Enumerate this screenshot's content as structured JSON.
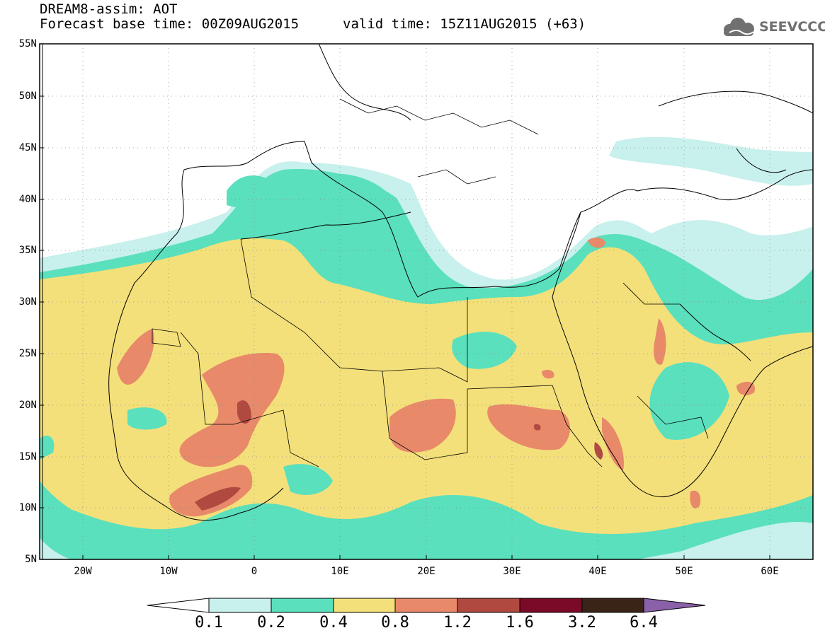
{
  "title": {
    "line1": "DREAM8-assim: AOT",
    "line2": "Forecast base time: 00Z09AUG2015",
    "valid": "valid time: 15Z11AUG2015 (+63)"
  },
  "logo": {
    "text": "SEEVCCC",
    "icon": "cloud-icon"
  },
  "map": {
    "lon_range": [
      -25,
      65
    ],
    "lat_range": [
      5,
      55
    ],
    "lat_ticks": [
      "55N",
      "50N",
      "45N",
      "40N",
      "35N",
      "30N",
      "25N",
      "20N",
      "15N",
      "10N",
      "5N"
    ],
    "lon_ticks": [
      "20W",
      "10W",
      "0",
      "10E",
      "20E",
      "30E",
      "40E",
      "50E",
      "60E"
    ]
  },
  "colorbar": {
    "labels": [
      "0.1",
      "0.2",
      "0.4",
      "0.8",
      "1.2",
      "1.6",
      "3.2",
      "6.4"
    ],
    "colors": [
      "#c8f0ec",
      "#5ae0bc",
      "#f4e07a",
      "#e8896a",
      "#b04a40",
      "#7a0a28",
      "#3a2418",
      "#8a60a8"
    ]
  }
}
